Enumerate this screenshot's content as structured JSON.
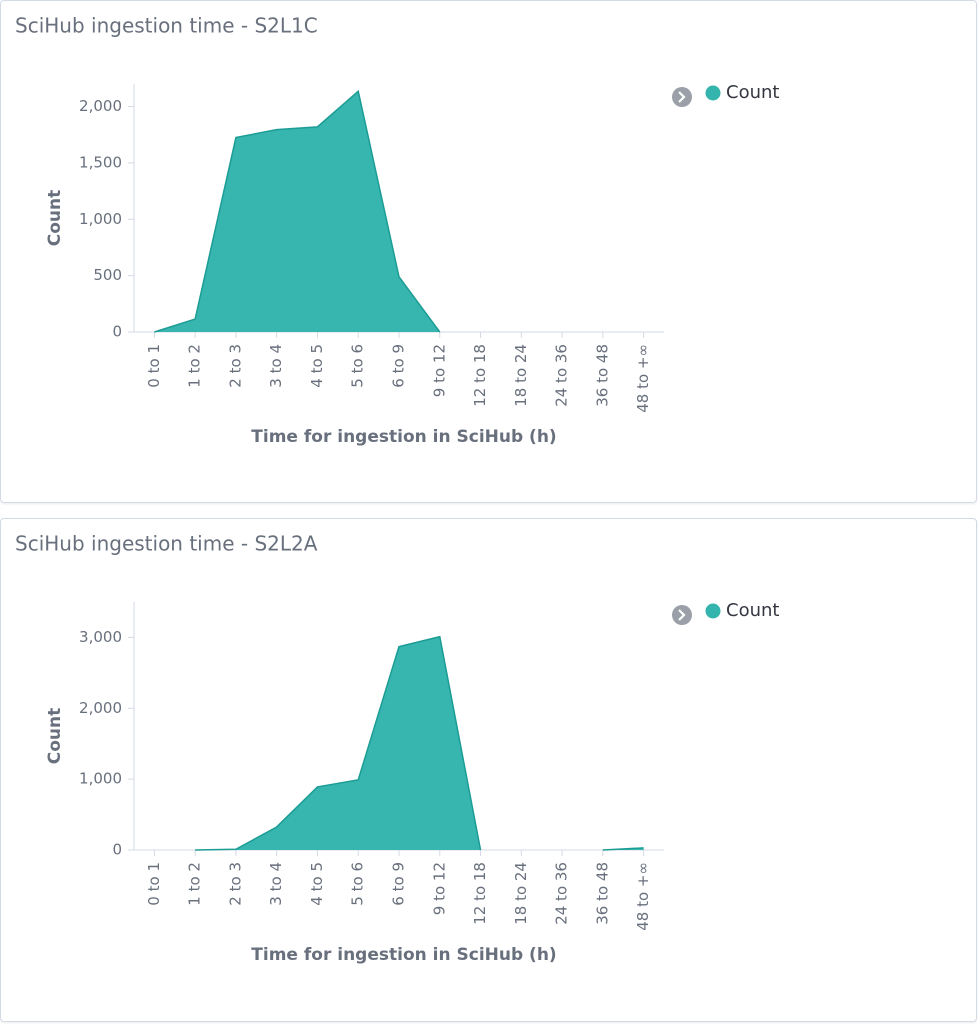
{
  "chart_data": [
    {
      "type": "area",
      "title": "SciHub ingestion time - S2L1C",
      "x_label": "Time for ingestion in SciHub (h)",
      "y_label": "Count",
      "categories": [
        "0 to 1",
        "1 to 2",
        "2 to 3",
        "3 to 4",
        "4 to 5",
        "5 to 6",
        "6 to 9",
        "9 to 12",
        "12 to 18",
        "18 to 24",
        "24 to 36",
        "36 to 48",
        "48 to +∞"
      ],
      "series": [
        {
          "name": "Count",
          "color": "#33b5ad",
          "values": [
            0,
            115,
            1725,
            1795,
            1820,
            2135,
            490,
            0,
            null,
            null,
            null,
            null,
            null
          ]
        }
      ],
      "ylim": [
        0,
        2200
      ],
      "yticks": [
        0,
        500,
        {
          "value": 1000,
          "label": "1,000"
        },
        {
          "value": 1500,
          "label": "1,500"
        },
        {
          "value": 2000,
          "label": "2,000"
        }
      ],
      "legend": "right"
    },
    {
      "type": "area",
      "title": "SciHub ingestion time - S2L2A",
      "x_label": "Time for ingestion in SciHub (h)",
      "y_label": "Count",
      "categories": [
        "0 to 1",
        "1 to 2",
        "2 to 3",
        "3 to 4",
        "4 to 5",
        "5 to 6",
        "6 to 9",
        "9 to 12",
        "12 to 18",
        "18 to 24",
        "24 to 36",
        "36 to 48",
        "48 to +∞"
      ],
      "series": [
        {
          "name": "Count",
          "color": "#33b5ad",
          "values": [
            null,
            0,
            10,
            325,
            890,
            990,
            2870,
            3010,
            0,
            null,
            null,
            0,
            30
          ]
        }
      ],
      "ylim": [
        0,
        3500
      ],
      "yticks": [
        0,
        {
          "value": 1000,
          "label": "1,000"
        },
        {
          "value": 2000,
          "label": "2,000"
        },
        {
          "value": 3000,
          "label": "3,000"
        }
      ],
      "legend": "right"
    }
  ]
}
